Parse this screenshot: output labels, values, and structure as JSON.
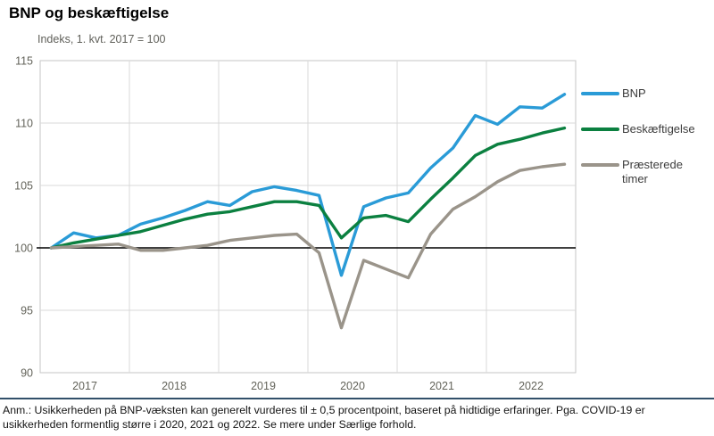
{
  "title": "BNP og beskæftigelse",
  "subtitle": "Indeks, 1. kvt. 2017  = 100",
  "legend": {
    "items": [
      {
        "label": "BNP",
        "color": "#2a9bd7"
      },
      {
        "label": "Beskæftigelse",
        "color": "#0b8040"
      },
      {
        "label": "Præsterede timer",
        "color": "#9a948a"
      }
    ]
  },
  "footnote": {
    "line1": "Anm.: Usikkerheden på BNP-væksten kan generelt vurderes til ± 0,5 procentpoint, baseret på hidtidige erfaringer. Pga. COVID-19",
    "line2": "er usikkerheden formentlig større i 2020, 2021 og 2022. Se mere under Særlige forhold."
  },
  "colors": {
    "bnp": "#2a9bd7",
    "beskaeftigelse": "#0b8040",
    "praesterede_timer": "#9a948a",
    "gridline": "#d9d9d9",
    "plot_border": "#c6c6c6",
    "baseline": "#000000",
    "axis_text": "#63635a",
    "divider": "#32506a"
  },
  "chart_data": {
    "type": "line",
    "title": "BNP og beskæftigelse",
    "subtitle": "Indeks, 1. kvt. 2017 = 100",
    "x_frequency": "quarterly",
    "categories": [
      "2017Q1",
      "2017Q2",
      "2017Q3",
      "2017Q4",
      "2018Q1",
      "2018Q2",
      "2018Q3",
      "2018Q4",
      "2019Q1",
      "2019Q2",
      "2019Q3",
      "2019Q4",
      "2020Q1",
      "2020Q2",
      "2020Q3",
      "2020Q4",
      "2021Q1",
      "2021Q2",
      "2021Q3",
      "2021Q4",
      "2022Q1",
      "2022Q2",
      "2022Q3",
      "2022Q4"
    ],
    "xticklabels": [
      "2017",
      "2018",
      "2019",
      "2020",
      "2021",
      "2022"
    ],
    "yticks": [
      90,
      95,
      100,
      105,
      110,
      115
    ],
    "ylim": [
      90,
      115
    ],
    "baseline": 100,
    "grid": true,
    "legend_position": "right",
    "series": [
      {
        "name": "BNP",
        "color": "#2a9bd7",
        "values": [
          100.0,
          101.2,
          100.8,
          101.0,
          101.9,
          102.4,
          103.0,
          103.7,
          103.4,
          104.5,
          104.9,
          104.6,
          104.2,
          97.8,
          103.3,
          104.0,
          104.4,
          106.4,
          108.0,
          110.6,
          109.9,
          111.3,
          111.2,
          112.3
        ]
      },
      {
        "name": "Beskæftigelse",
        "color": "#0b8040",
        "values": [
          100.0,
          100.4,
          100.7,
          101.0,
          101.3,
          101.8,
          102.3,
          102.7,
          102.9,
          103.3,
          103.7,
          103.7,
          103.4,
          100.8,
          102.4,
          102.6,
          102.1,
          103.9,
          105.6,
          107.4,
          108.3,
          108.7,
          109.2,
          109.6
        ]
      },
      {
        "name": "Præsterede timer",
        "color": "#9a948a",
        "values": [
          100.0,
          100.1,
          100.2,
          100.3,
          99.8,
          99.8,
          100.0,
          100.2,
          100.6,
          100.8,
          101.0,
          101.1,
          99.6,
          93.6,
          99.0,
          98.3,
          97.6,
          101.1,
          103.1,
          104.1,
          105.3,
          106.2,
          106.5,
          106.7
        ]
      }
    ]
  }
}
